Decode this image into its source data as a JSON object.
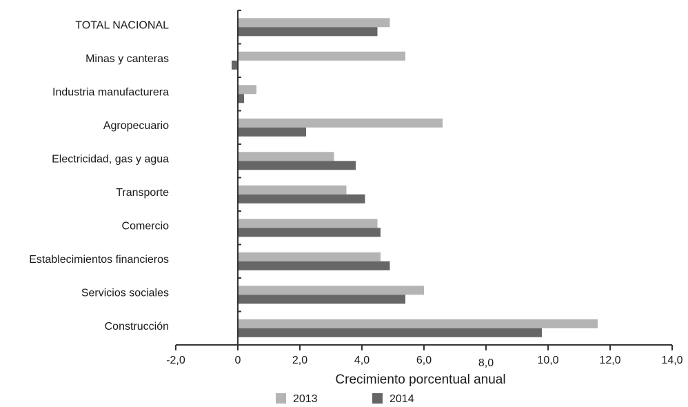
{
  "chart_data": {
    "type": "bar",
    "orientation": "horizontal",
    "categories": [
      "TOTAL NACIONAL",
      "Minas y canteras",
      "Industria manufacturera",
      "Agropecuario",
      "Electricidad, gas y agua",
      "Transporte",
      "Comercio",
      "Establecimientos financieros",
      "Servicios sociales",
      "Construcción"
    ],
    "series": [
      {
        "name": "2013",
        "color": "#b4b4b4",
        "values": [
          4.9,
          5.4,
          0.6,
          6.6,
          3.1,
          3.5,
          4.5,
          4.6,
          6.0,
          11.6
        ]
      },
      {
        "name": "2014",
        "color": "#666666",
        "values": [
          4.5,
          -0.2,
          0.2,
          2.2,
          3.8,
          4.1,
          4.6,
          4.9,
          5.4,
          9.8
        ]
      }
    ],
    "xlabel": "Crecimiento porcentual anual",
    "xlim": [
      -2,
      14
    ],
    "xticks": [
      -2,
      0,
      2,
      4,
      6,
      8,
      10,
      12,
      14
    ],
    "xtick_labels": [
      "-2,0",
      "0",
      "2,0",
      "4,0",
      "6,0",
      "8,0",
      "10,0",
      "12,0",
      "14,0"
    ],
    "legend_position": "bottom",
    "grid": false
  }
}
